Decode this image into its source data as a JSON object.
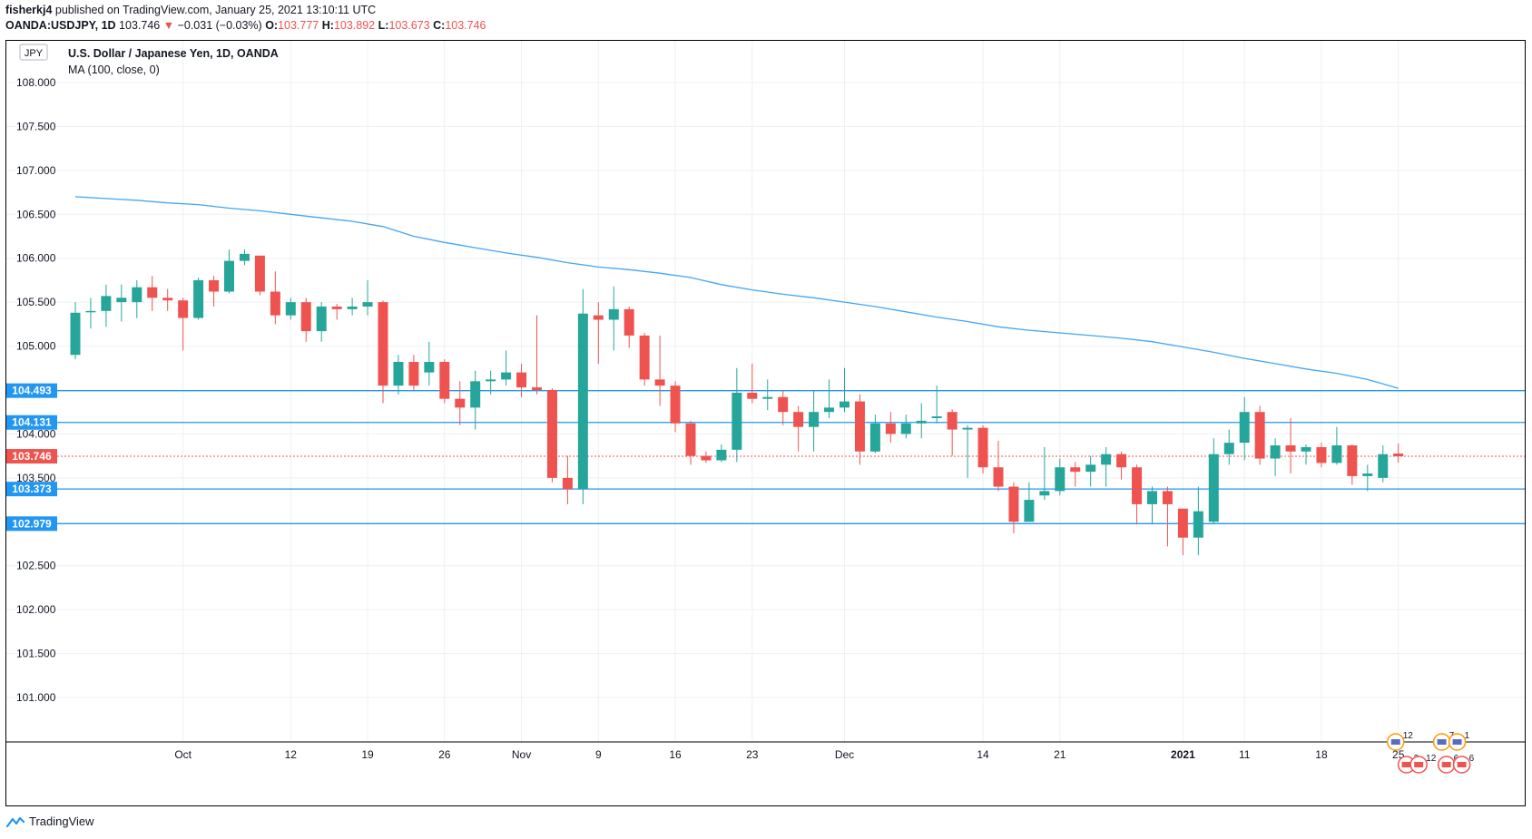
{
  "header": {
    "author": "fisherkj4",
    "published": "published on TradingView.com, January 25, 2021 13:10:11 UTC",
    "symbol": "OANDA:USDJPY, 1D",
    "last": "103.746",
    "change": "−0.031 (−0.03%)",
    "o_label": "O:",
    "o": "103.777",
    "h_label": "H:",
    "h": "103.892",
    "l_label": "L:",
    "l": "103.673",
    "c_label": "C:",
    "c": "103.746"
  },
  "footer": {
    "brand": "TradingView"
  },
  "chart_data": {
    "type": "candlestick",
    "title": "U.S. Dollar / Japanese Yen, 1D, OANDA",
    "indicator": "MA (100, close, 0)",
    "currency_badge": "JPY",
    "ylim": [
      100.6,
      108.3
    ],
    "y_ticks": [
      "108.000",
      "107.500",
      "107.000",
      "106.500",
      "106.000",
      "105.500",
      "105.000",
      "104.000",
      "103.500",
      "102.500",
      "102.000",
      "101.500",
      "101.000"
    ],
    "x_ticks": [
      {
        "i": 7,
        "label": "Oct"
      },
      {
        "i": 14,
        "label": "12"
      },
      {
        "i": 19,
        "label": "19"
      },
      {
        "i": 24,
        "label": "26"
      },
      {
        "i": 29,
        "label": "Nov"
      },
      {
        "i": 34,
        "label": "9"
      },
      {
        "i": 39,
        "label": "16"
      },
      {
        "i": 44,
        "label": "23"
      },
      {
        "i": 50,
        "label": "Dec"
      },
      {
        "i": 59,
        "label": "14"
      },
      {
        "i": 64,
        "label": "21"
      },
      {
        "i": 72,
        "label": "2021"
      },
      {
        "i": 76,
        "label": "11"
      },
      {
        "i": 81,
        "label": "18"
      },
      {
        "i": 86,
        "label": "25"
      }
    ],
    "candles": [
      [
        104.9,
        105.38,
        105.5,
        104.85
      ],
      [
        105.4,
        105.4,
        105.55,
        105.2
      ],
      [
        105.4,
        105.57,
        105.7,
        105.22
      ],
      [
        105.5,
        105.55,
        105.7,
        105.28
      ],
      [
        105.5,
        105.67,
        105.75,
        105.32
      ],
      [
        105.67,
        105.55,
        105.8,
        105.4
      ],
      [
        105.55,
        105.52,
        105.65,
        105.4
      ],
      [
        105.52,
        105.32,
        105.55,
        104.95
      ],
      [
        105.32,
        105.75,
        105.78,
        105.3
      ],
      [
        105.75,
        105.62,
        105.8,
        105.45
      ],
      [
        105.62,
        105.97,
        106.1,
        105.6
      ],
      [
        105.97,
        106.05,
        106.1,
        105.92
      ],
      [
        106.03,
        105.62,
        106.03,
        105.58
      ],
      [
        105.62,
        105.35,
        105.85,
        105.25
      ],
      [
        105.35,
        105.5,
        105.55,
        105.3
      ],
      [
        105.5,
        105.17,
        105.55,
        105.05
      ],
      [
        105.17,
        105.45,
        105.5,
        105.05
      ],
      [
        105.45,
        105.42,
        105.48,
        105.3
      ],
      [
        105.42,
        105.45,
        105.55,
        105.35
      ],
      [
        105.45,
        105.5,
        105.75,
        105.35
      ],
      [
        105.5,
        104.55,
        105.52,
        104.35
      ],
      [
        104.55,
        104.82,
        104.9,
        104.45
      ],
      [
        104.82,
        104.55,
        104.9,
        104.5
      ],
      [
        104.7,
        104.82,
        105.05,
        104.55
      ],
      [
        104.82,
        104.4,
        104.85,
        104.35
      ],
      [
        104.4,
        104.3,
        104.6,
        104.1
      ],
      [
        104.3,
        104.6,
        104.72,
        104.05
      ],
      [
        104.6,
        104.62,
        104.72,
        104.45
      ],
      [
        104.62,
        104.7,
        104.95,
        104.55
      ],
      [
        104.7,
        104.53,
        104.8,
        104.42
      ],
      [
        104.53,
        104.5,
        105.35,
        104.45
      ],
      [
        104.5,
        103.5,
        104.52,
        103.45
      ],
      [
        103.5,
        103.37,
        103.75,
        103.2
      ],
      [
        103.37,
        105.37,
        105.65,
        103.2
      ],
      [
        105.35,
        105.3,
        105.5,
        104.8
      ],
      [
        105.3,
        105.42,
        105.68,
        104.95
      ],
      [
        105.42,
        105.12,
        105.45,
        104.98
      ],
      [
        105.12,
        104.62,
        105.15,
        104.55
      ],
      [
        104.62,
        104.55,
        105.12,
        104.32
      ],
      [
        104.55,
        104.12,
        104.6,
        104.02
      ],
      [
        104.12,
        103.75,
        104.15,
        103.65
      ],
      [
        103.75,
        103.7,
        103.8,
        103.67
      ],
      [
        103.7,
        103.82,
        103.88,
        103.68
      ],
      [
        103.82,
        104.47,
        104.75,
        103.68
      ],
      [
        104.47,
        104.4,
        104.8,
        104.35
      ],
      [
        104.4,
        104.42,
        104.62,
        104.27
      ],
      [
        104.42,
        104.25,
        104.5,
        104.1
      ],
      [
        104.25,
        104.08,
        104.32,
        103.8
      ],
      [
        104.08,
        104.25,
        104.5,
        103.8
      ],
      [
        104.25,
        104.3,
        104.62,
        104.18
      ],
      [
        104.3,
        104.37,
        104.75,
        104.25
      ],
      [
        104.37,
        103.8,
        104.45,
        103.65
      ],
      [
        103.8,
        104.12,
        104.22,
        103.78
      ],
      [
        104.12,
        104.0,
        104.25,
        103.9
      ],
      [
        104.0,
        104.12,
        104.22,
        103.95
      ],
      [
        104.12,
        104.15,
        104.35,
        103.95
      ],
      [
        104.18,
        104.2,
        104.55,
        104.12
      ],
      [
        104.25,
        104.05,
        104.28,
        103.75
      ],
      [
        104.05,
        104.07,
        104.1,
        103.5
      ],
      [
        104.07,
        103.62,
        104.1,
        103.55
      ],
      [
        103.62,
        103.4,
        103.92,
        103.35
      ],
      [
        103.4,
        103.0,
        103.45,
        102.87
      ],
      [
        103.0,
        103.25,
        103.45,
        103.0
      ],
      [
        103.3,
        103.35,
        103.85,
        103.25
      ],
      [
        103.35,
        103.62,
        103.72,
        103.3
      ],
      [
        103.62,
        103.57,
        103.68,
        103.4
      ],
      [
        103.57,
        103.65,
        103.75,
        103.4
      ],
      [
        103.65,
        103.77,
        103.85,
        103.4
      ],
      [
        103.77,
        103.62,
        103.8,
        103.48
      ],
      [
        103.62,
        103.2,
        103.65,
        102.97
      ],
      [
        103.2,
        103.35,
        103.4,
        102.97
      ],
      [
        103.35,
        103.2,
        103.4,
        102.72
      ],
      [
        103.15,
        102.82,
        103.15,
        102.62
      ],
      [
        102.82,
        103.12,
        103.4,
        102.62
      ],
      [
        103.0,
        103.77,
        103.95,
        102.97
      ],
      [
        103.77,
        103.9,
        104.05,
        103.65
      ],
      [
        103.9,
        104.25,
        104.42,
        103.7
      ],
      [
        104.25,
        103.72,
        104.32,
        103.65
      ],
      [
        103.72,
        103.87,
        103.95,
        103.52
      ],
      [
        103.87,
        103.8,
        104.18,
        103.55
      ],
      [
        103.8,
        103.85,
        103.88,
        103.65
      ],
      [
        103.85,
        103.67,
        103.9,
        103.62
      ],
      [
        103.67,
        103.87,
        104.08,
        103.65
      ],
      [
        103.87,
        103.52,
        103.88,
        103.42
      ],
      [
        103.52,
        103.55,
        103.65,
        103.35
      ],
      [
        103.5,
        103.77,
        103.87,
        103.45
      ],
      [
        103.777,
        103.746,
        103.892,
        103.673
      ]
    ],
    "ma_100": [
      [
        0,
        106.7
      ],
      [
        2,
        106.68
      ],
      [
        4,
        106.66
      ],
      [
        6,
        106.63
      ],
      [
        8,
        106.61
      ],
      [
        10,
        106.57
      ],
      [
        12,
        106.54
      ],
      [
        14,
        106.5
      ],
      [
        16,
        106.46
      ],
      [
        18,
        106.42
      ],
      [
        20,
        106.36
      ],
      [
        22,
        106.25
      ],
      [
        24,
        106.18
      ],
      [
        26,
        106.12
      ],
      [
        28,
        106.06
      ],
      [
        30,
        106.01
      ],
      [
        32,
        105.95
      ],
      [
        34,
        105.9
      ],
      [
        36,
        105.87
      ],
      [
        38,
        105.83
      ],
      [
        40,
        105.78
      ],
      [
        42,
        105.7
      ],
      [
        44,
        105.64
      ],
      [
        46,
        105.59
      ],
      [
        48,
        105.55
      ],
      [
        50,
        105.5
      ],
      [
        52,
        105.45
      ],
      [
        54,
        105.39
      ],
      [
        56,
        105.33
      ],
      [
        58,
        105.28
      ],
      [
        60,
        105.22
      ],
      [
        62,
        105.18
      ],
      [
        64,
        105.15
      ],
      [
        66,
        105.12
      ],
      [
        68,
        105.09
      ],
      [
        70,
        105.05
      ],
      [
        72,
        104.99
      ],
      [
        74,
        104.93
      ],
      [
        76,
        104.86
      ],
      [
        78,
        104.8
      ],
      [
        80,
        104.74
      ],
      [
        82,
        104.69
      ],
      [
        84,
        104.62
      ],
      [
        86,
        104.52
      ]
    ],
    "levels": [
      {
        "value": 104.493,
        "label": "104.493",
        "color": "#2196f3"
      },
      {
        "value": 104.131,
        "label": "104.131",
        "color": "#2196f3"
      },
      {
        "value": 103.746,
        "label": "103.746",
        "color": "#ef5350",
        "dashed": true
      },
      {
        "value": 103.373,
        "label": "103.373",
        "color": "#2196f3"
      },
      {
        "value": 102.979,
        "label": "102.979",
        "color": "#2196f3"
      }
    ],
    "colors": {
      "up": "#26a69a",
      "down": "#ef5350",
      "ma": "#42a5f5",
      "grid": "#eef0f3"
    },
    "events": [
      {
        "i": 85,
        "label": "12"
      },
      {
        "i": 88,
        "label": "7"
      },
      {
        "i": 89,
        "label": "1"
      },
      {
        "i": 85.7,
        "label": "2"
      },
      {
        "i": 86.5,
        "label": "12"
      },
      {
        "i": 88.3,
        "label": "6"
      },
      {
        "i": 89.3,
        "label": "6"
      }
    ]
  }
}
